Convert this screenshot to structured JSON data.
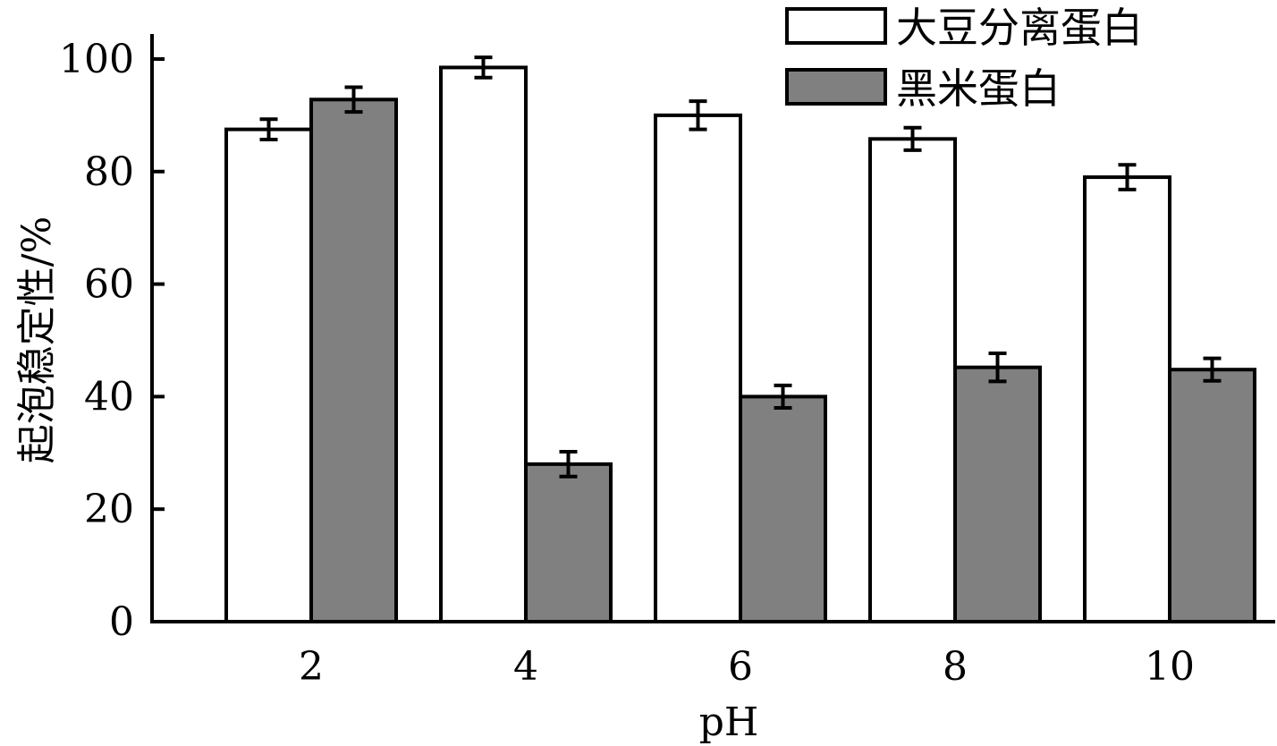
{
  "chart_data": {
    "type": "bar",
    "xlabel": "pH",
    "ylabel": "起泡稳定性/%",
    "categories": [
      "2",
      "4",
      "6",
      "8",
      "10"
    ],
    "ylim": [
      0,
      100
    ],
    "yticks": [
      "0",
      "20",
      "40",
      "60",
      "80",
      "100"
    ],
    "legend_position": "top-right",
    "grid": false,
    "series": [
      {
        "name": "大豆分离蛋白",
        "color": "#ffffff",
        "values": [
          87.5,
          98.5,
          90,
          85.8,
          79
        ],
        "errors": [
          1.8,
          1.8,
          2.5,
          2.0,
          2.2
        ]
      },
      {
        "name": "黑米蛋白",
        "color": "#808080",
        "values": [
          92.8,
          28,
          40,
          45.2,
          44.8
        ],
        "errors": [
          2.2,
          2.2,
          2.0,
          2.5,
          2.0
        ]
      }
    ]
  }
}
